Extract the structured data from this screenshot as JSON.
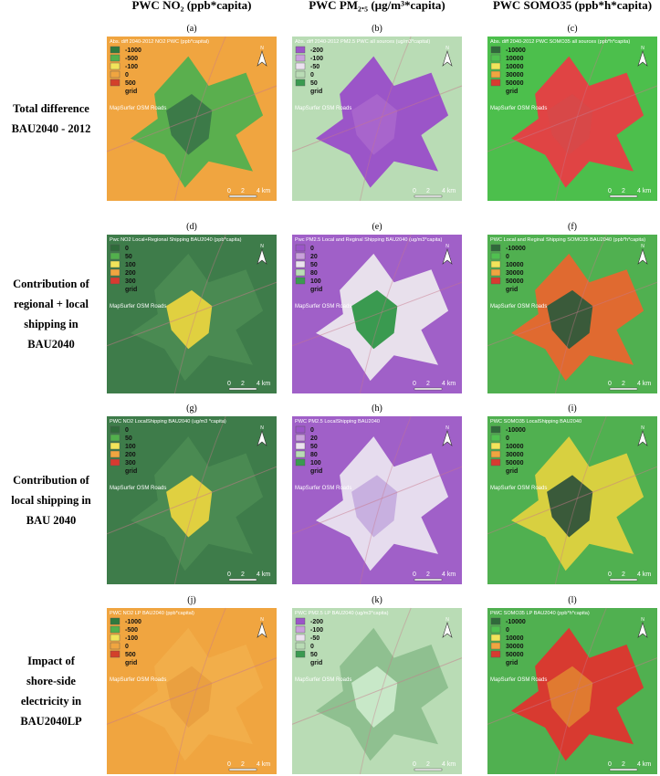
{
  "columns": [
    {
      "header": "PWC NO₂ (ppb*capita)"
    },
    {
      "header": "PWC PM₂.₅ (µg/m³*capita)"
    },
    {
      "header": "PWC SOMO35 (ppb*h*capita)"
    }
  ],
  "rows": [
    {
      "label": [
        "Total difference",
        "BAU2040 - 2012"
      ]
    },
    {
      "label": [
        "Contribution of",
        "regional + local",
        "shipping in",
        "BAU2040"
      ]
    },
    {
      "label": [
        "Contribution of",
        "local shipping in",
        "BAU 2040"
      ]
    },
    {
      "label": [
        "Impact of",
        "shore-side",
        "electricity in",
        "BAU2040LP"
      ]
    }
  ],
  "panels": [
    {
      "letter": "(a)",
      "title": "Abs. diff 2040-2012 NO2 PWC (ppb*capital)",
      "legend": [
        {
          "label": "-1000",
          "color": "#2f7a3e"
        },
        {
          "label": "-500",
          "color": "#52b04c"
        },
        {
          "label": "-100",
          "color": "#f2e45a"
        },
        {
          "label": "0",
          "color": "#f0a540"
        },
        {
          "label": "500",
          "color": "#d3402a"
        },
        {
          "label": "grid"
        }
      ]
    },
    {
      "letter": "(b)",
      "title": "Abs. diff 2040-2012 PM2.5 PWC all sources (ug/m3*capital)",
      "legend": [
        {
          "label": "-200",
          "color": "#9b55c8"
        },
        {
          "label": "-100",
          "color": "#c9a0dc"
        },
        {
          "label": "-50",
          "color": "#ece2f0"
        },
        {
          "label": "0",
          "color": "#b9dcb5"
        },
        {
          "label": "50",
          "color": "#3a9a50"
        },
        {
          "label": "grid"
        }
      ]
    },
    {
      "letter": "(c)",
      "title": "Abs. diff 2040-2012 PWC SOMO35 all sources (ppb*h*capita)",
      "legend": [
        {
          "label": "-10000",
          "color": "#2f6b3a"
        },
        {
          "label": "10000",
          "color": "#50c050"
        },
        {
          "label": "10000",
          "color": "#f2e45a"
        },
        {
          "label": "30000",
          "color": "#f0a540"
        },
        {
          "label": "50000",
          "color": "#d83a30"
        },
        {
          "label": "grid"
        }
      ]
    },
    {
      "letter": "(d)",
      "title": "Pwc NO2 Local+Regional Shipping BAU2040 (ppb*capita)",
      "legend": [
        {
          "label": "0",
          "color": "#2f6b3a"
        },
        {
          "label": "50",
          "color": "#52b04c"
        },
        {
          "label": "100",
          "color": "#f2e45a"
        },
        {
          "label": "200",
          "color": "#f0a540"
        },
        {
          "label": "300",
          "color": "#d83a30"
        },
        {
          "label": "grid"
        }
      ]
    },
    {
      "letter": "(e)",
      "title": "Pwc PM2.5 Local and Reginal Shipping BAU2040 (ug/m3*capita)",
      "legend": [
        {
          "label": "0",
          "color": "#9b55c8"
        },
        {
          "label": "20",
          "color": "#c9a0dc"
        },
        {
          "label": "50",
          "color": "#ece2f0"
        },
        {
          "label": "80",
          "color": "#b9dcb5"
        },
        {
          "label": "100",
          "color": "#3a9a50"
        },
        {
          "label": "grid"
        }
      ]
    },
    {
      "letter": "(f)",
      "title": "PWC Local and Reginal Shipping SOMO35 BAU2040 (ppb*h*capita)",
      "legend": [
        {
          "label": "-10000",
          "color": "#2f6b3a"
        },
        {
          "label": "0",
          "color": "#50c050"
        },
        {
          "label": "10000",
          "color": "#f2e45a"
        },
        {
          "label": "30000",
          "color": "#f0a540"
        },
        {
          "label": "50000",
          "color": "#d83a30"
        },
        {
          "label": "grid"
        }
      ]
    },
    {
      "letter": "(g)",
      "title": "PWC NO2 LocalShipping BAU2040 (ug/m3 *capita)",
      "legend": [
        {
          "label": "0",
          "color": "#2f6b3a"
        },
        {
          "label": "50",
          "color": "#52b04c"
        },
        {
          "label": "100",
          "color": "#f2e45a"
        },
        {
          "label": "200",
          "color": "#f0a540"
        },
        {
          "label": "300",
          "color": "#d83a30"
        },
        {
          "label": "grid"
        }
      ]
    },
    {
      "letter": "(h)",
      "title": "PWC PM2.5 LocalShipping BAU2040",
      "legend": [
        {
          "label": "0",
          "color": "#9b55c8"
        },
        {
          "label": "20",
          "color": "#c9a0dc"
        },
        {
          "label": "50",
          "color": "#ece2f0"
        },
        {
          "label": "80",
          "color": "#b9dcb5"
        },
        {
          "label": "100",
          "color": "#3a9a50"
        },
        {
          "label": "grid"
        }
      ]
    },
    {
      "letter": "(i)",
      "title": "PWC SOMO35 LocalShipping BAU2040",
      "legend": [
        {
          "label": "-10000",
          "color": "#2f6b3a"
        },
        {
          "label": "0",
          "color": "#50c050"
        },
        {
          "label": "10000",
          "color": "#f2e45a"
        },
        {
          "label": "30000",
          "color": "#f0a540"
        },
        {
          "label": "50000",
          "color": "#d83a30"
        },
        {
          "label": "grid"
        }
      ]
    },
    {
      "letter": "(j)",
      "title": "PWC NO2 LP BAU2040 (ppb*capital)",
      "legend": [
        {
          "label": "-1000",
          "color": "#2f7a3e"
        },
        {
          "label": "-500",
          "color": "#52b04c"
        },
        {
          "label": "-100",
          "color": "#f2e45a"
        },
        {
          "label": "0",
          "color": "#f0a540"
        },
        {
          "label": "500",
          "color": "#d3402a"
        },
        {
          "label": "grid"
        }
      ]
    },
    {
      "letter": "(k)",
      "title": "PWC PM2.5 LP BAU2040 (ug/m3*capita)",
      "legend": [
        {
          "label": "-200",
          "color": "#9b55c8"
        },
        {
          "label": "-100",
          "color": "#c9a0dc"
        },
        {
          "label": "-50",
          "color": "#ece2f0"
        },
        {
          "label": "0",
          "color": "#b9dcb5"
        },
        {
          "label": "50",
          "color": "#3a9a50"
        },
        {
          "label": "grid"
        }
      ]
    },
    {
      "letter": "(l)",
      "title": "PWC SOMO35 LP BAU2040 (ppb*h*capita)",
      "legend": [
        {
          "label": "-10000",
          "color": "#2f6b3a"
        },
        {
          "label": "0",
          "color": "#50c050"
        },
        {
          "label": "10000",
          "color": "#f2e45a"
        },
        {
          "label": "30000",
          "color": "#f0a540"
        },
        {
          "label": "50000",
          "color": "#d83a30"
        },
        {
          "label": "grid"
        }
      ]
    }
  ],
  "basemap": "MapSurfer OSM Roads",
  "north": "N",
  "scale_bar": [
    "0",
    "2",
    "4 km"
  ]
}
